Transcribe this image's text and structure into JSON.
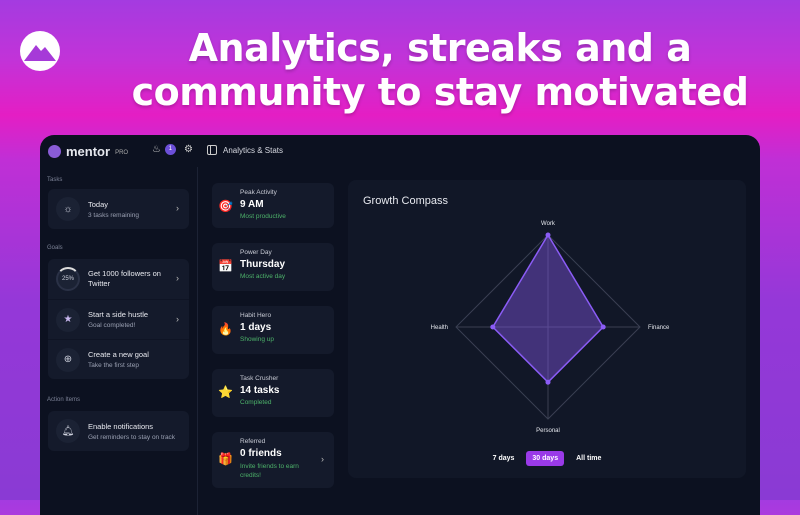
{
  "headline": "Analytics, streaks and a community to stay motivated",
  "app": {
    "name": "mentor",
    "tier": "PRO",
    "badge_count": "1",
    "page_title": "Analytics & Stats"
  },
  "sidebar": {
    "tasks_label": "Tasks",
    "today": {
      "title": "Today",
      "subtitle": "3 tasks remaining"
    },
    "goals_label": "Goals",
    "goals": [
      {
        "title": "Get 1000 followers on Twitter",
        "progress": "25%",
        "progress_value": 25
      },
      {
        "title": "Start a side hustle",
        "subtitle": "Goal completed!"
      },
      {
        "title": "Create a new goal",
        "subtitle": "Take the first step"
      }
    ],
    "actions_label": "Action Items",
    "actions": [
      {
        "title": "Enable notifications",
        "subtitle": "Get reminders to stay on track"
      }
    ]
  },
  "stats": [
    {
      "label": "Peak Activity",
      "value": "9 AM",
      "sub": "Most productive",
      "icon": "🎯"
    },
    {
      "label": "Power Day",
      "value": "Thursday",
      "sub": "Most active day",
      "icon": "📅"
    },
    {
      "label": "Habit Hero",
      "value": "1 days",
      "sub": "Showing up",
      "icon": "🔥"
    },
    {
      "label": "Task Crusher",
      "value": "14 tasks",
      "sub": "Completed",
      "icon": "⭐"
    },
    {
      "label": "Referred",
      "value": "0 friends",
      "sub": "Invite friends to earn credits!",
      "icon": "🎁"
    }
  ],
  "chart_data": {
    "type": "radar",
    "title": "Growth Compass",
    "categories": [
      "Work",
      "Finance",
      "Personal",
      "Health"
    ],
    "values": [
      100,
      60,
      60,
      60
    ],
    "range": [
      0,
      100
    ],
    "color": "#8b5cf6"
  },
  "ranges": {
    "options": [
      "7 days",
      "30 days",
      "All time"
    ],
    "selected": "30 days"
  }
}
